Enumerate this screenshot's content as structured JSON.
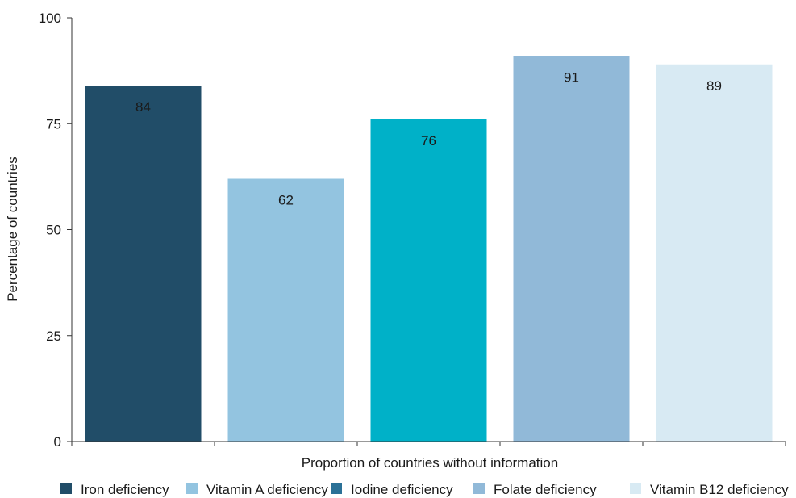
{
  "chart_data": {
    "type": "bar",
    "title": "",
    "xlabel": "Proportion of countries without information",
    "ylabel": "Percentage of countries",
    "ylim": [
      0,
      100
    ],
    "yticks": [
      0,
      25,
      50,
      75,
      100
    ],
    "grid": false,
    "legend_position": "bottom",
    "series": [
      {
        "name": "Iron deficiency",
        "value": 84,
        "color": "#214d68"
      },
      {
        "name": "Vitamin A deficiency",
        "value": 62,
        "color": "#93c4e0"
      },
      {
        "name": "Iodine deficiency",
        "value": 76,
        "color": "#00b1c8"
      },
      {
        "name": "Folate deficiency",
        "value": 91,
        "color": "#91b9d8"
      },
      {
        "name": "Vitamin B12 deficiency",
        "value": 89,
        "color": "#d8eaf3"
      }
    ],
    "legend_colors": [
      "#214d68",
      "#93c4e0",
      "#2b7197",
      "#91b9d8",
      "#d8eaf3"
    ]
  }
}
